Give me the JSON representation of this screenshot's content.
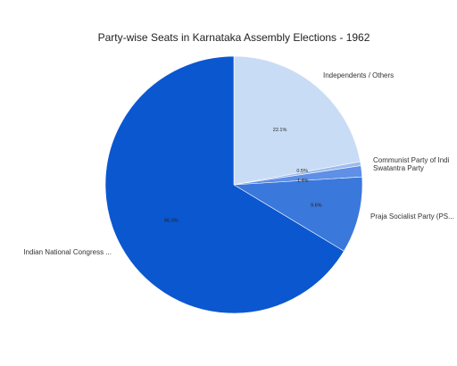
{
  "chart_data": {
    "type": "pie",
    "title": "Party-wise Seats in Karnataka Assembly Elections - 1962",
    "categories": [
      "Independents / Others",
      "Communist Party of Indi",
      "Swatantra Party",
      "Praja Socialist Party (PS...",
      "Indian National Congress ..."
    ],
    "values": [
      22.1,
      0.5,
      1.4,
      9.6,
      66.3
    ],
    "value_labels": [
      "22.1%",
      "0.5%",
      "1.4%",
      "9.6%",
      "66.3%"
    ],
    "colors": [
      "#c9dcf5",
      "#9dbbee",
      "#5f8fe6",
      "#3a78db",
      "#0b57d0"
    ],
    "legend": "none"
  }
}
